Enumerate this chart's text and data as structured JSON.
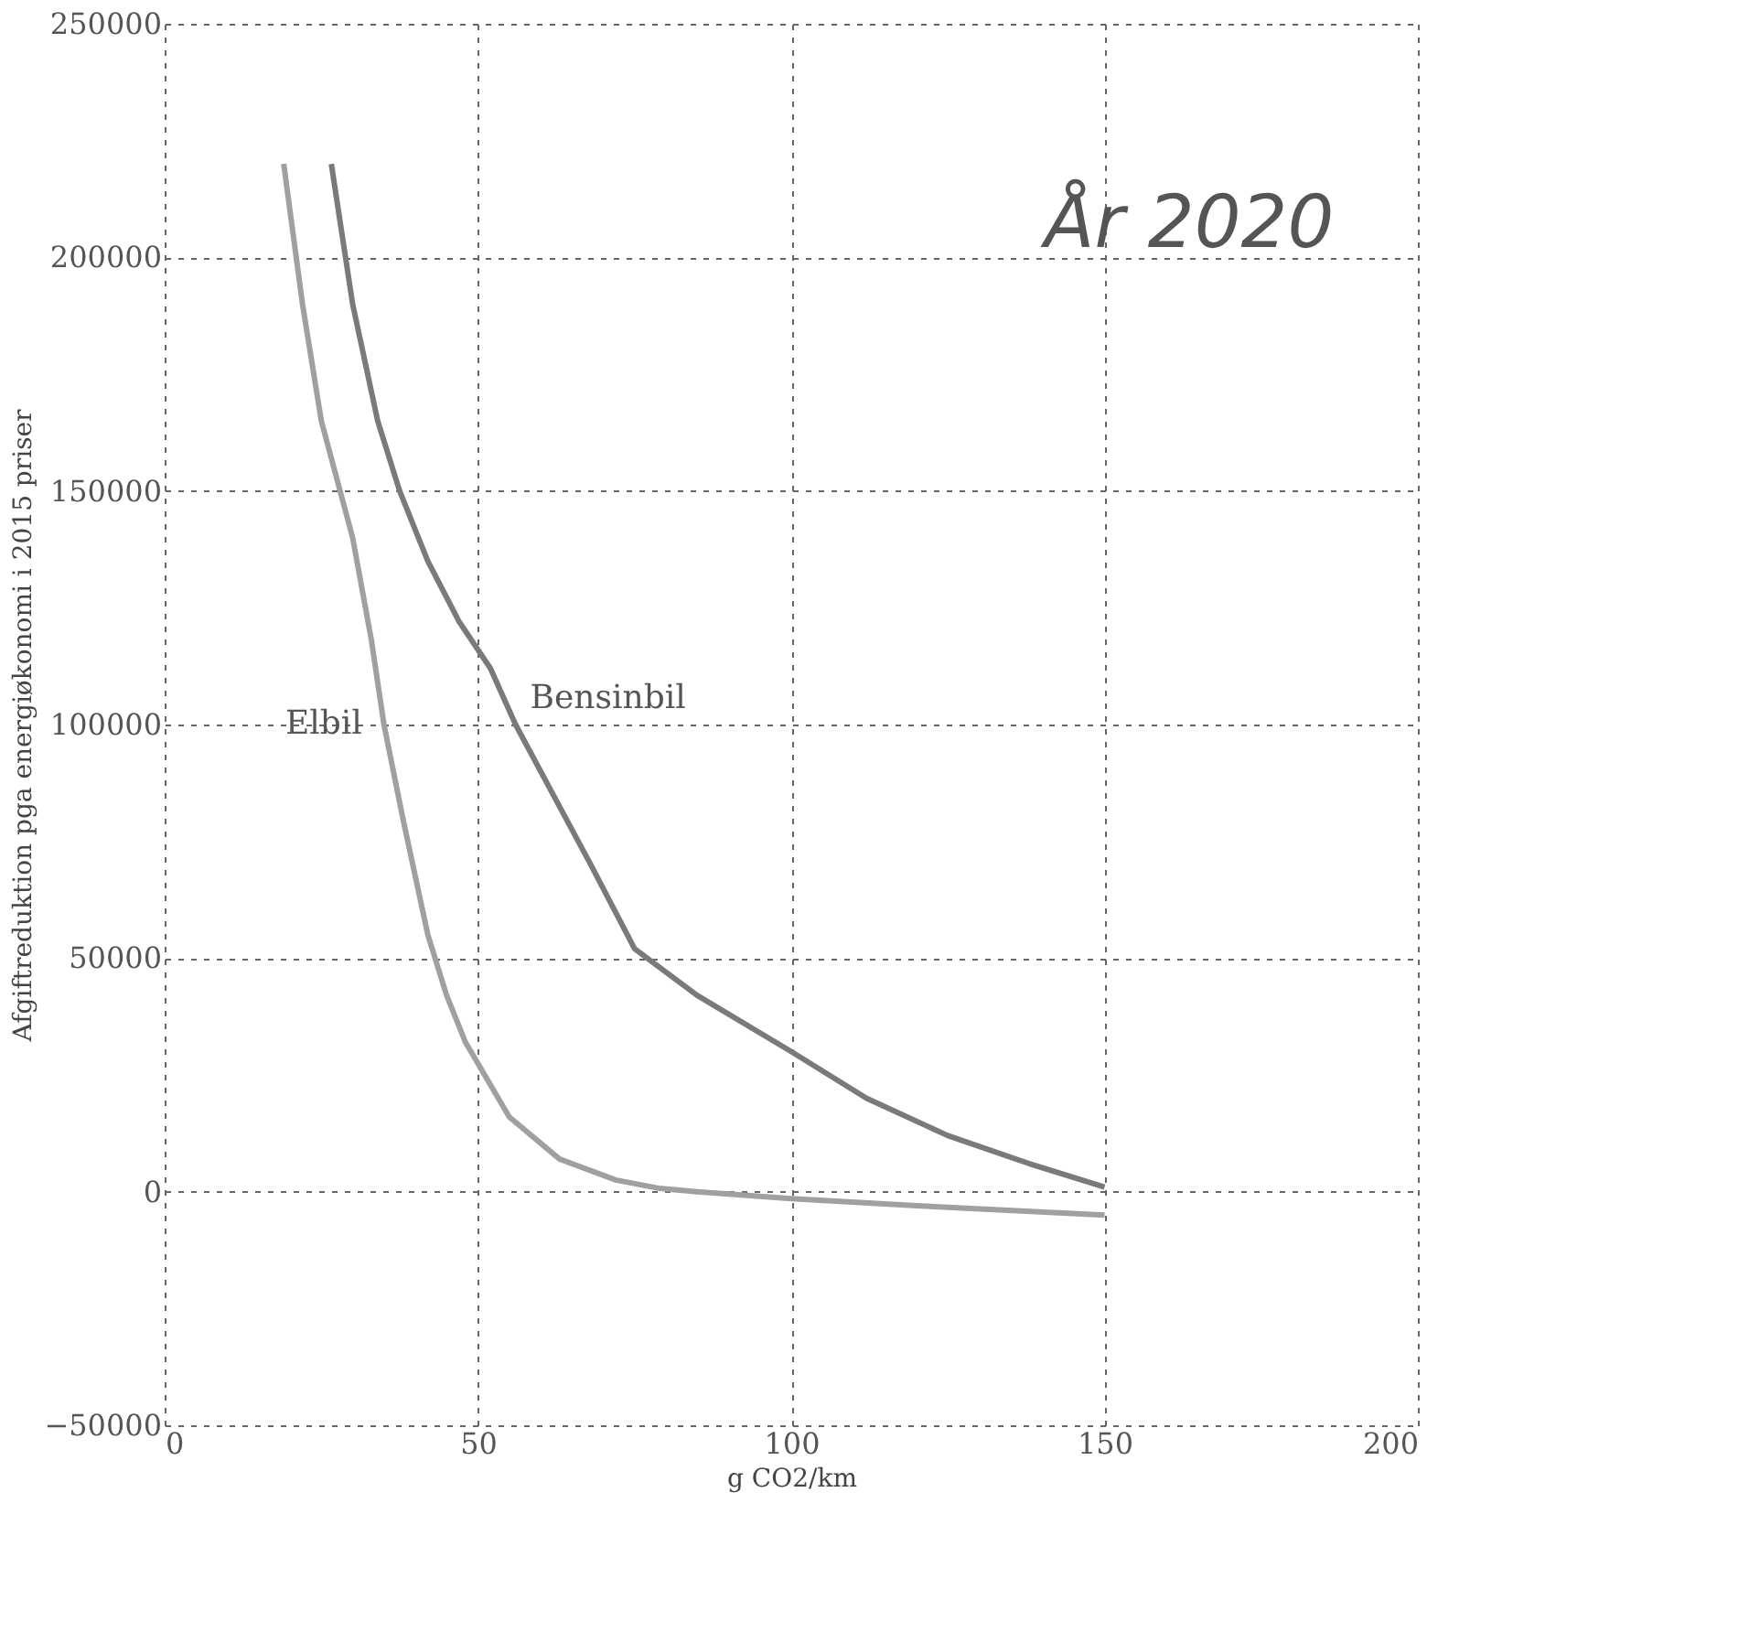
{
  "chart_data": {
    "type": "line",
    "xlabel": "g CO2/km",
    "ylabel": "Afgiftreduktion pga energiøkonomi i 2015 priser",
    "series": [
      {
        "color": "#7a7a7a",
        "x": [
          26.6,
          30,
          34,
          37.5,
          42,
          47,
          52,
          56,
          62,
          68,
          75,
          85,
          100,
          112,
          125,
          138,
          150
        ],
        "values": [
          220000,
          190000,
          165000,
          150000,
          135000,
          122000,
          112000,
          100000,
          85000,
          70000,
          52000,
          42000,
          30000,
          20000,
          12000,
          6000,
          1000
        ]
      },
      {
        "color": "#a0a0a0",
        "x": [
          19,
          22,
          25,
          28,
          30,
          33,
          35,
          38,
          42,
          45,
          48,
          55,
          63,
          72,
          79,
          85,
          100,
          120,
          150
        ],
        "values": [
          220000,
          190000,
          165000,
          150000,
          140000,
          118000,
          100000,
          80000,
          55000,
          42000,
          32000,
          16000,
          7000,
          2500,
          700,
          0,
          -1500,
          -3000,
          -5000
        ]
      }
    ],
    "annotations": [
      "År 2020",
      {
        "text": "Bensinbil",
        "x": 56,
        "y": 100000
      },
      {
        "text": "Elbil",
        "x": 35,
        "y": 100000
      }
    ],
    "xlim": [
      0,
      200
    ],
    "xticks": [
      0,
      50,
      100,
      150,
      200
    ],
    "ylim": [
      -50000,
      250000
    ],
    "yticks": [
      -50000,
      0,
      50000,
      100000,
      150000,
      200000,
      250000
    ],
    "grid": true,
    "legend": false,
    "marker": "none",
    "line_style": "solid"
  }
}
